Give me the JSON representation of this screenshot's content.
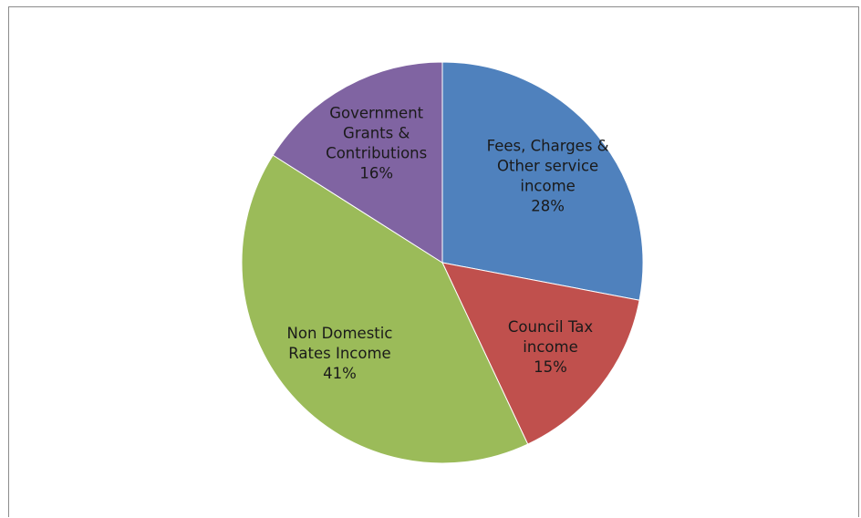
{
  "chart_data": {
    "type": "pie",
    "title": "",
    "slices": [
      {
        "label_lines": [
          "Fees, Charges &",
          "Other service",
          "income"
        ],
        "value": 28,
        "value_label": "28%",
        "color": "#4f81bd"
      },
      {
        "label_lines": [
          "Council Tax",
          "income"
        ],
        "value": 15,
        "value_label": "15%",
        "color": "#c0504d"
      },
      {
        "label_lines": [
          "Non Domestic",
          "Rates Income"
        ],
        "value": 41,
        "value_label": "41%",
        "color": "#9bbb59"
      },
      {
        "label_lines": [
          "Government",
          "Grants &",
          "Contributions"
        ],
        "value": 16,
        "value_label": "16%",
        "color": "#8064a2"
      }
    ],
    "start_angle": "12 o'clock",
    "direction": "clockwise",
    "legend": "none",
    "data_labels": "inside"
  }
}
